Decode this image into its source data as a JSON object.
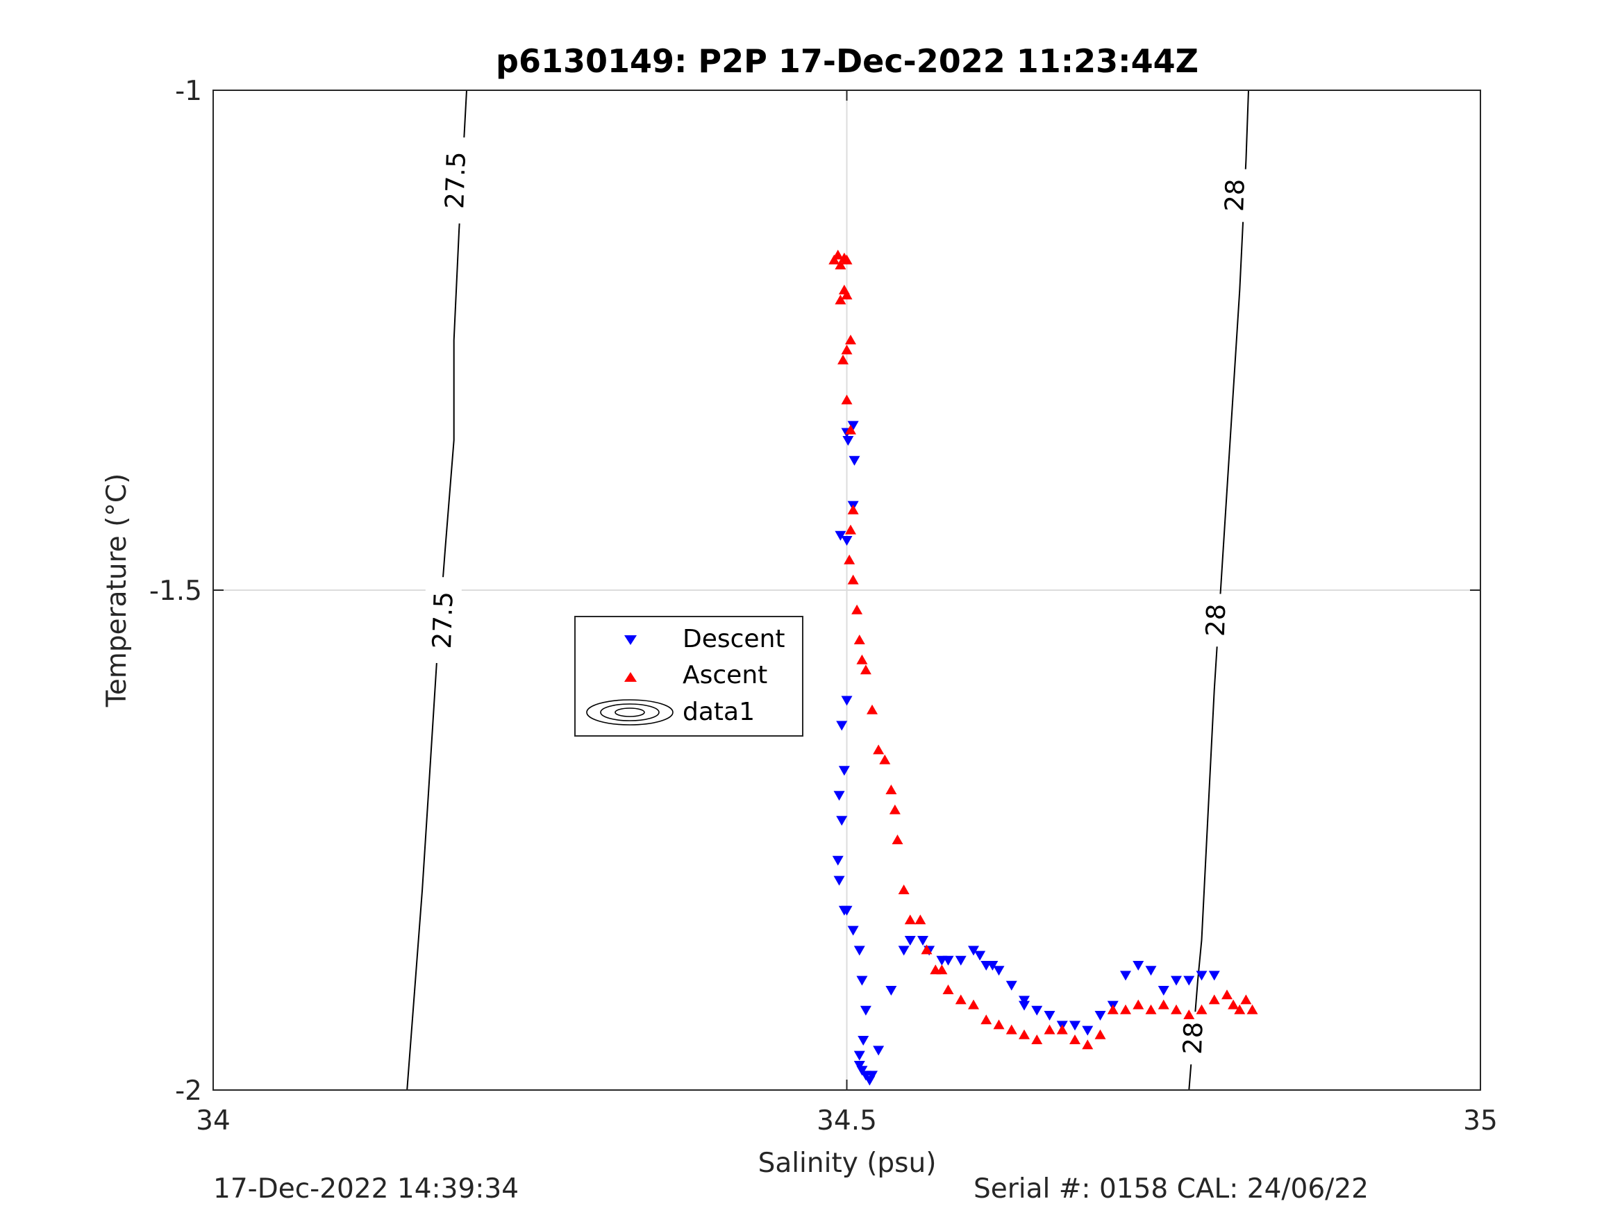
{
  "chart_data": {
    "type": "scatter",
    "title": "p6130149: P2P 17-Dec-2022 11:23:44Z",
    "xlabel": "Salinity (psu)",
    "ylabel": "Temperature (°C)",
    "xlim": [
      34,
      35
    ],
    "ylim": [
      -2,
      -1
    ],
    "xticks": [
      34,
      34.5,
      35
    ],
    "xtick_labels": [
      "34",
      "34.5",
      "35"
    ],
    "yticks": [
      -2,
      -1.5,
      -1
    ],
    "ytick_labels": [
      "-2",
      "-1.5",
      "-1"
    ],
    "grid": true,
    "legend": {
      "position": "center-left",
      "entries": [
        "Descent",
        "Ascent",
        "data1"
      ]
    },
    "colors": {
      "descent": "#0000ff",
      "ascent": "#ff0000",
      "contour": "#000000"
    },
    "contours": [
      {
        "level": 27.5,
        "label": "27.5",
        "points": [
          [
            34.153,
            -2.0
          ],
          [
            34.165,
            -1.8
          ],
          [
            34.17,
            -1.7
          ],
          [
            34.177,
            -1.56
          ],
          [
            34.183,
            -1.46
          ],
          [
            34.19,
            -1.35
          ],
          [
            34.19,
            -1.25
          ],
          [
            34.194,
            -1.14
          ],
          [
            34.2,
            -1.0
          ]
        ],
        "label_positions": [
          [
            34.181,
            -1.53
          ],
          [
            34.191,
            -1.09
          ]
        ]
      },
      {
        "level": 28,
        "label": "28",
        "points": [
          [
            34.77,
            -2.0
          ],
          [
            34.777,
            -1.89
          ],
          [
            34.78,
            -1.85
          ],
          [
            34.79,
            -1.6
          ],
          [
            34.8,
            -1.4
          ],
          [
            34.81,
            -1.2
          ],
          [
            34.815,
            -1.07
          ],
          [
            34.817,
            -1.0
          ]
        ],
        "label_positions": [
          [
            34.773,
            -1.948
          ],
          [
            34.791,
            -1.53
          ],
          [
            34.806,
            -1.105
          ]
        ]
      }
    ],
    "series": [
      {
        "name": "Descent",
        "marker": "triangle-down",
        "x": [
          34.505,
          34.5,
          34.501,
          34.506,
          34.505,
          34.495,
          34.5,
          34.5,
          34.496,
          34.498,
          34.494,
          34.496,
          34.493,
          34.494,
          34.498,
          34.5,
          34.505,
          34.51,
          34.512,
          34.515,
          34.513,
          34.51,
          34.51,
          34.512,
          34.515,
          34.518,
          34.52,
          34.525,
          34.535,
          34.545,
          34.55,
          34.56,
          34.565,
          34.575,
          34.58,
          34.59,
          34.6,
          34.605,
          34.61,
          34.615,
          34.62,
          34.63,
          34.64,
          34.64,
          34.65,
          34.66,
          34.67,
          34.68,
          34.69,
          34.7,
          34.71,
          34.72,
          34.73,
          34.74,
          34.75,
          34.76,
          34.77,
          34.78,
          34.79
        ],
        "y": [
          -1.335,
          -1.342,
          -1.35,
          -1.37,
          -1.415,
          -1.445,
          -1.45,
          -1.61,
          -1.635,
          -1.68,
          -1.705,
          -1.73,
          -1.77,
          -1.79,
          -1.82,
          -1.82,
          -1.84,
          -1.86,
          -1.89,
          -1.92,
          -1.95,
          -1.965,
          -1.975,
          -1.98,
          -1.985,
          -1.99,
          -1.985,
          -1.96,
          -1.9,
          -1.86,
          -1.85,
          -1.85,
          -1.86,
          -1.87,
          -1.87,
          -1.87,
          -1.86,
          -1.865,
          -1.875,
          -1.875,
          -1.88,
          -1.895,
          -1.91,
          -1.915,
          -1.92,
          -1.925,
          -1.935,
          -1.935,
          -1.94,
          -1.925,
          -1.915,
          -1.885,
          -1.875,
          -1.88,
          -1.9,
          -1.89,
          -1.89,
          -1.885,
          -1.885
        ]
      },
      {
        "name": "Ascent",
        "marker": "triangle-up",
        "x": [
          34.49,
          34.493,
          34.495,
          34.498,
          34.5,
          34.498,
          34.5,
          34.503,
          34.495,
          34.497,
          34.5,
          34.5,
          34.503,
          34.505,
          34.503,
          34.502,
          34.505,
          34.508,
          34.51,
          34.512,
          34.515,
          34.52,
          34.525,
          34.53,
          34.535,
          34.538,
          34.54,
          34.545,
          34.55,
          34.558,
          34.563,
          34.57,
          34.575,
          34.58,
          34.59,
          34.6,
          34.61,
          34.62,
          34.63,
          34.64,
          34.65,
          34.66,
          34.67,
          34.68,
          34.69,
          34.7,
          34.71,
          34.72,
          34.73,
          34.74,
          34.75,
          34.76,
          34.77,
          34.78,
          34.79,
          34.8,
          34.805,
          34.81,
          34.815,
          34.82
        ],
        "y": [
          -1.17,
          -1.165,
          -1.175,
          -1.168,
          -1.17,
          -1.2,
          -1.205,
          -1.25,
          -1.21,
          -1.27,
          -1.26,
          -1.31,
          -1.34,
          -1.42,
          -1.44,
          -1.47,
          -1.49,
          -1.52,
          -1.55,
          -1.57,
          -1.58,
          -1.62,
          -1.66,
          -1.67,
          -1.7,
          -1.72,
          -1.75,
          -1.8,
          -1.83,
          -1.83,
          -1.86,
          -1.88,
          -1.88,
          -1.9,
          -1.91,
          -1.915,
          -1.93,
          -1.935,
          -1.94,
          -1.945,
          -1.95,
          -1.94,
          -1.94,
          -1.95,
          -1.955,
          -1.945,
          -1.92,
          -1.92,
          -1.915,
          -1.92,
          -1.915,
          -1.92,
          -1.925,
          -1.92,
          -1.91,
          -1.905,
          -1.915,
          -1.92,
          -1.91,
          -1.92
        ]
      }
    ]
  },
  "footer": {
    "left_text": "17-Dec-2022 14:39:34",
    "right_text": "Serial #: 0158  CAL: 24/06/22"
  }
}
